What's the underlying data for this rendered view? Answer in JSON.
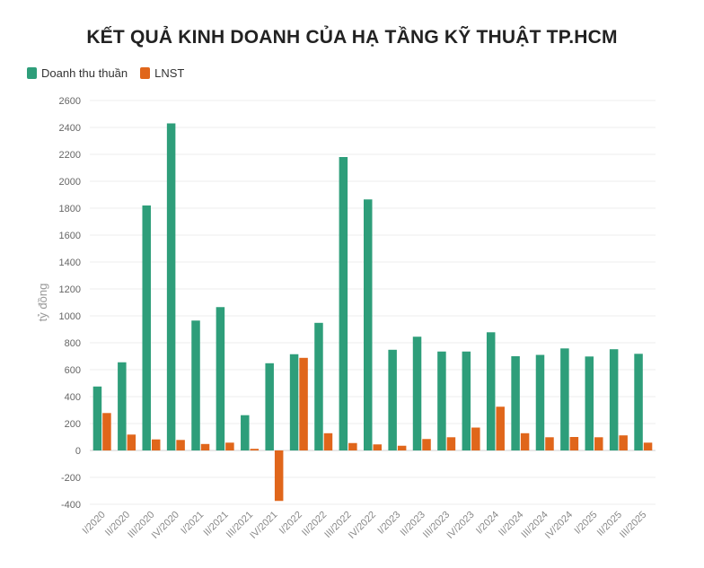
{
  "title": "KẾT QUẢ KINH DOANH CỦA HẠ TẦNG KỸ THUẬT TP.HCM",
  "legend": [
    {
      "label": "Doanh thu thuần",
      "color": "#2e9e7a"
    },
    {
      "label": "LNST",
      "color": "#e0661b"
    }
  ],
  "chart_data": {
    "type": "bar",
    "title": "KẾT QUẢ KINH DOANH CỦA HẠ TẦNG KỸ THUẬT TP.HCM",
    "ylabel": "tỷ đồng",
    "xlabel": "",
    "ylim": [
      -400,
      2600
    ],
    "yticks": [
      2600,
      2400,
      2200,
      2000,
      1800,
      1600,
      1400,
      1200,
      1000,
      800,
      600,
      400,
      200,
      0,
      -200,
      -400
    ],
    "grid": true,
    "legend_position": "top-left",
    "categories": [
      "I/2020",
      "II/2020",
      "III/2020",
      "IV/2020",
      "I/2021",
      "II/2021",
      "III/2021",
      "IV/2021",
      "I/2022",
      "II/2022",
      "III/2022",
      "IV/2022",
      "I/2023",
      "II/2023",
      "III/2023",
      "IV/2023",
      "I/2024",
      "II/2024",
      "III/2024",
      "IV/2024",
      "I/2025",
      "II/2025",
      "III/2025"
    ],
    "series": [
      {
        "name": "Doanh thu thuần",
        "color": "#2e9e7a",
        "values": [
          475,
          655,
          1820,
          2430,
          965,
          1065,
          262,
          648,
          715,
          948,
          2180,
          1865,
          748,
          845,
          735,
          735,
          878,
          700,
          710,
          758,
          698,
          752,
          718
        ]
      },
      {
        "name": "LNST",
        "color": "#e0661b",
        "values": [
          278,
          118,
          82,
          78,
          48,
          58,
          12,
          -375,
          688,
          128,
          55,
          45,
          35,
          85,
          98,
          170,
          325,
          128,
          98,
          100,
          98,
          112,
          58
        ]
      }
    ]
  }
}
